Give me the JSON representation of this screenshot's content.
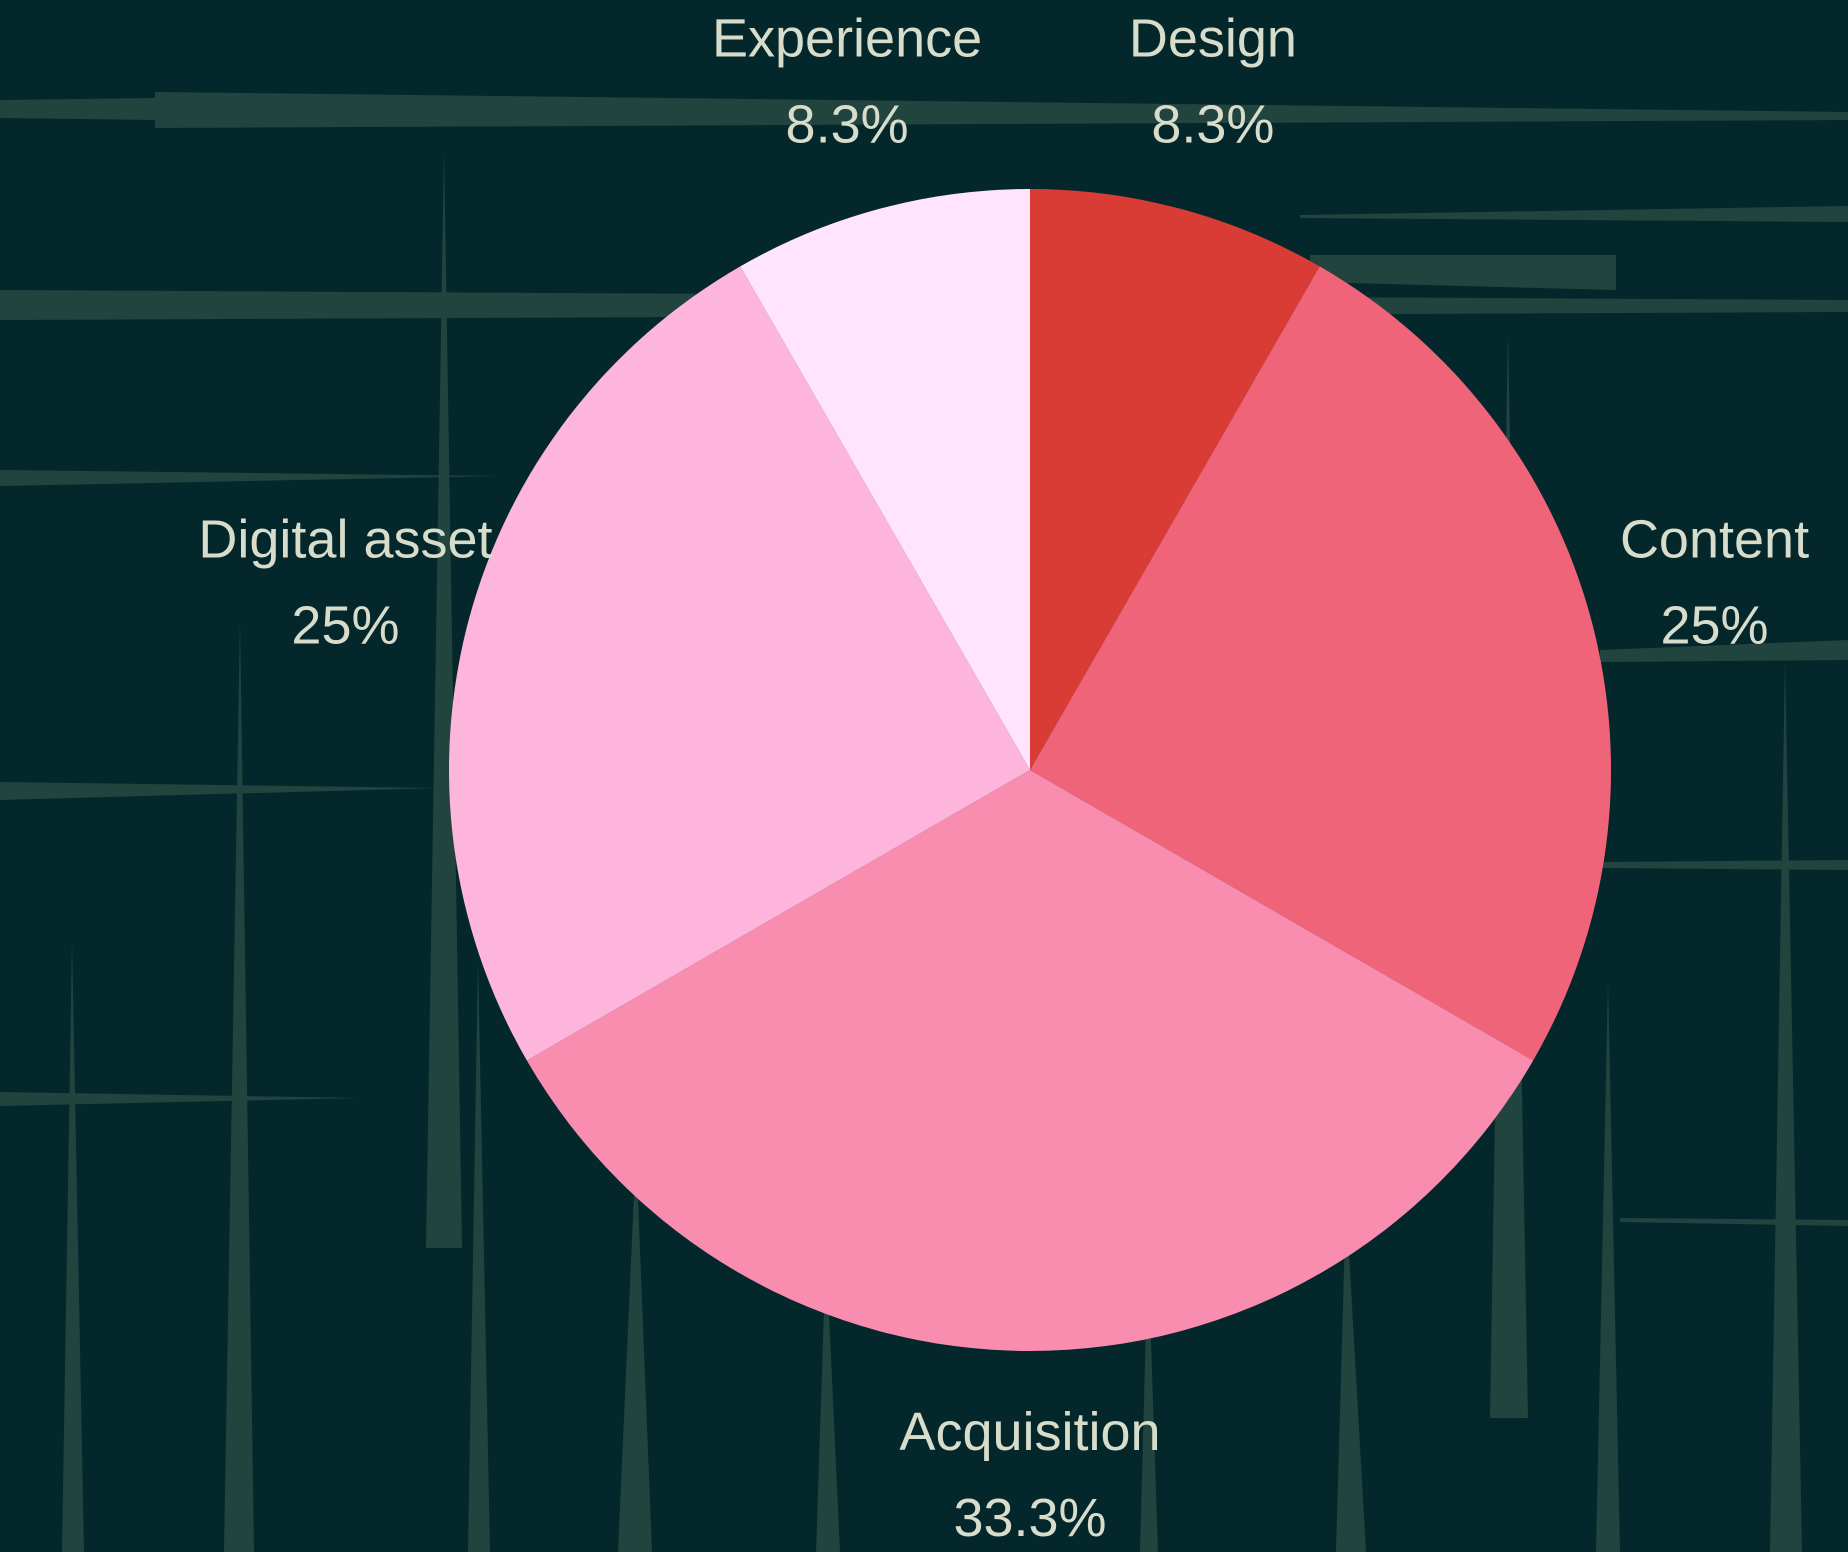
{
  "chart_data": {
    "type": "pie",
    "categories": [
      "Design",
      "Content",
      "Acquisition",
      "Digital asset",
      "Experience"
    ],
    "values": [
      8.3,
      25,
      33.3,
      25,
      8.3
    ],
    "value_labels": [
      "8.3%",
      "25%",
      "33.3%",
      "25%",
      "8.3%"
    ],
    "colors": [
      "#d93b35",
      "#f0647a",
      "#f98db0",
      "#fdb5dc",
      "#ffe4fb"
    ]
  }
}
